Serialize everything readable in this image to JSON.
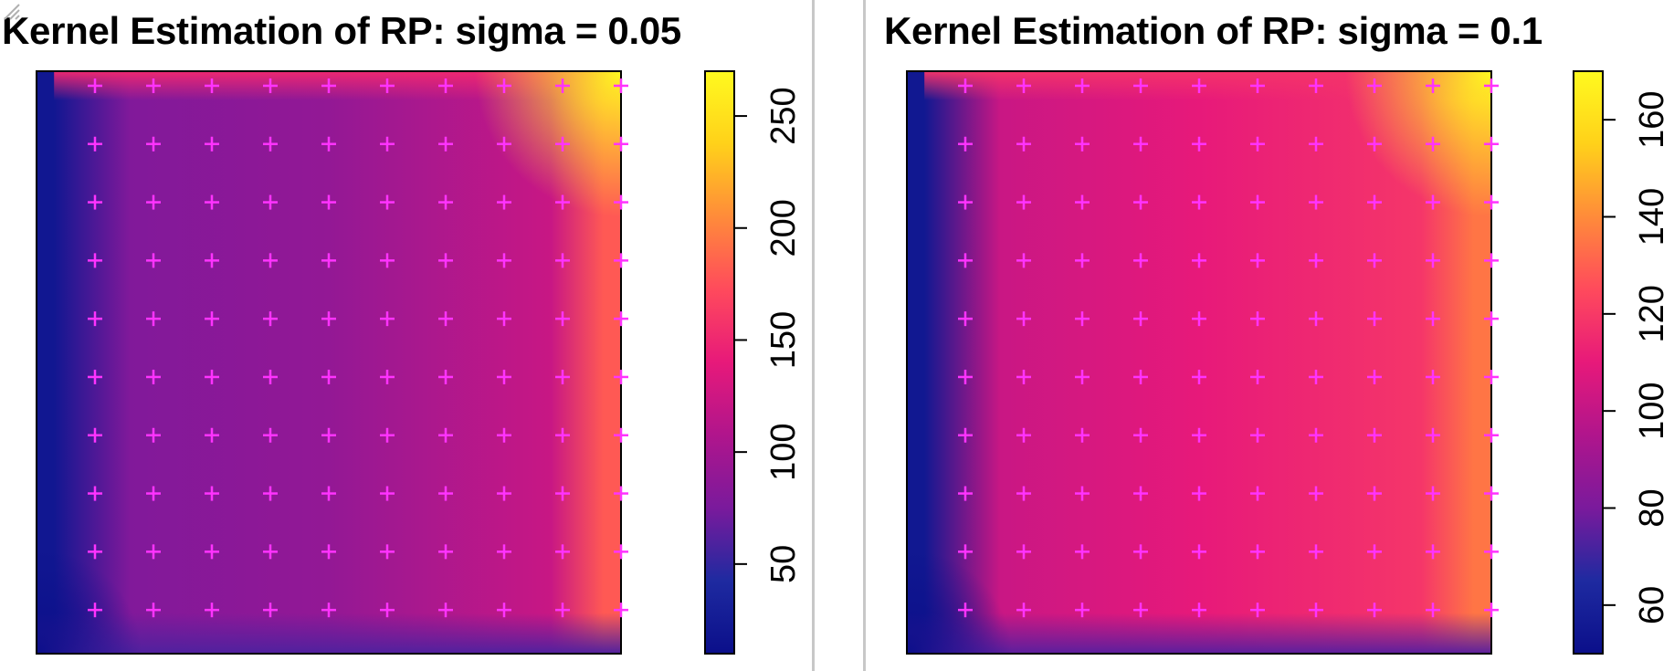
{
  "chart_data": [
    {
      "type": "heatmap",
      "title": "Kernel Estimation of RP: sigma = 0.05",
      "colorbar_ticks": [
        "50",
        "100",
        "150",
        "200",
        "250"
      ],
      "colorbar_range": [
        10,
        270
      ],
      "grid_points": {
        "cols": 10,
        "rows": 10
      },
      "center_value": 90,
      "edge_left_value": 20,
      "edge_bottom_value": 60,
      "edge_top_value": 150,
      "edge_right_value": 180,
      "corner_top_right_value": 270
    },
    {
      "type": "heatmap",
      "title": "Kernel Estimation of RP: sigma = 0.1",
      "colorbar_ticks": [
        "60",
        "80",
        "100",
        "120",
        "140",
        "160"
      ],
      "colorbar_range": [
        50,
        170
      ],
      "grid_points": {
        "cols": 10,
        "rows": 10
      },
      "center_value": 110,
      "edge_left_value": 55,
      "edge_bottom_value": 75,
      "edge_top_value": 118,
      "edge_right_value": 135,
      "corner_top_right_value": 170
    }
  ],
  "colors": {
    "marker": "#ff33ff",
    "palette": [
      "#0b0f8a",
      "#1e2aa0",
      "#7a1a9c",
      "#b0158c",
      "#e7197a",
      "#ff4a5c",
      "#ff8b3a",
      "#ffd11a",
      "#fffa1f"
    ]
  }
}
